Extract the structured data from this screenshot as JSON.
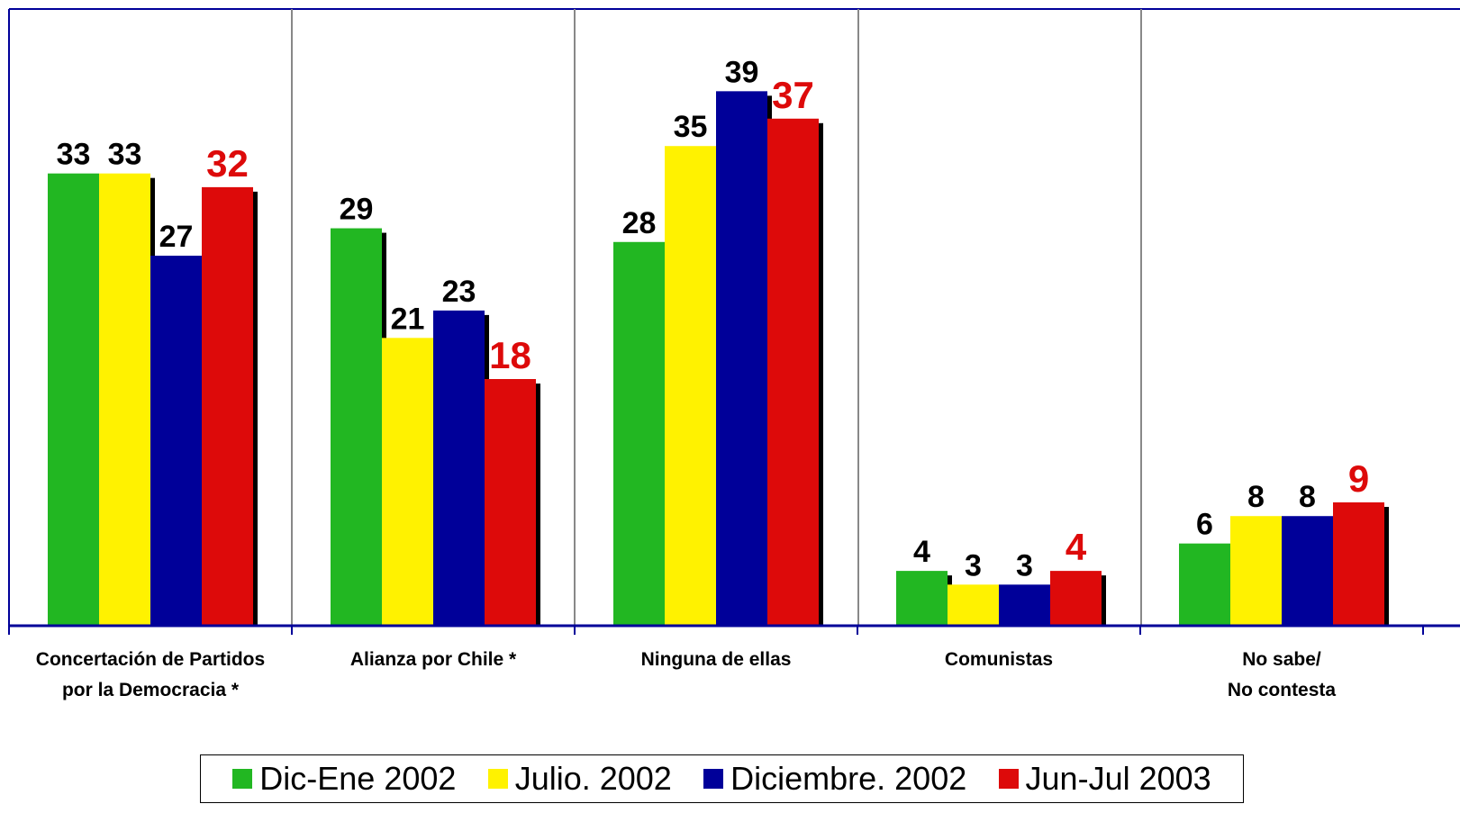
{
  "chart_data": {
    "type": "bar",
    "categories": [
      "Concertación de Partidos\npor la Democracia *",
      "Alianza por Chile *",
      "Ninguna de ellas",
      "Comunistas",
      "No sabe/\nNo contesta"
    ],
    "series": [
      {
        "name": "Dic-Ene 2002",
        "color": "#22b722",
        "label_color": "#000000",
        "values": [
          33,
          29,
          28,
          4,
          6
        ]
      },
      {
        "name": "Julio. 2002",
        "color": "#fff200",
        "label_color": "#000000",
        "values": [
          33,
          21,
          35,
          3,
          8
        ]
      },
      {
        "name": "Diciembre. 2002",
        "color": "#000099",
        "label_color": "#000000",
        "values": [
          27,
          23,
          39,
          3,
          8
        ]
      },
      {
        "name": "Jun-Jul 2003",
        "color": "#dd0a0a",
        "label_color": "#dd0a0a",
        "values": [
          32,
          18,
          37,
          4,
          9
        ]
      }
    ],
    "ylim": [
      0,
      45
    ],
    "legend": "bottom"
  }
}
